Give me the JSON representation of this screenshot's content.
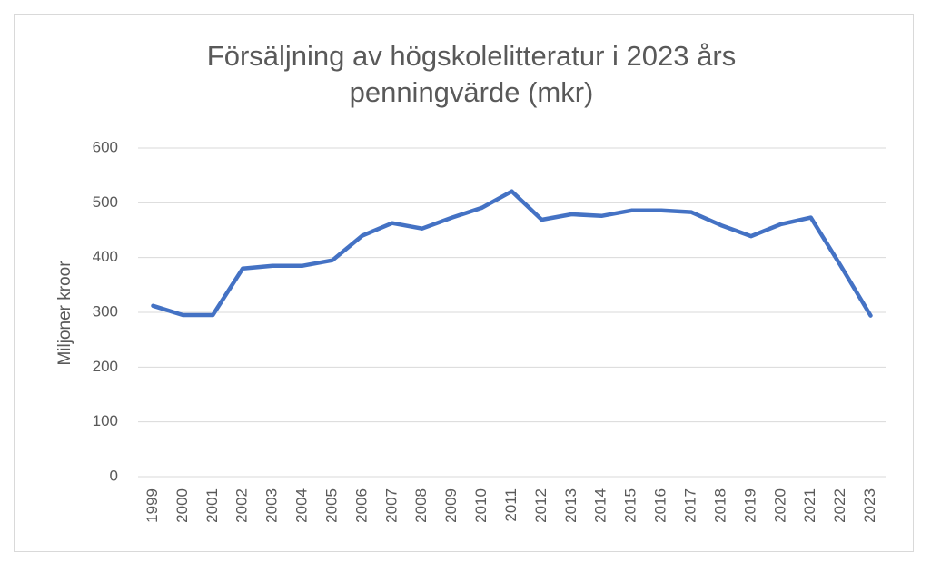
{
  "chart_data": {
    "type": "line",
    "title": "Försäljning av högskolelitteratur i 2023 års penningvärde (mkr)",
    "y_label": "Miljoner kroor",
    "categories": [
      "1999",
      "2000",
      "2001",
      "2002",
      "2003",
      "2004",
      "2005",
      "2006",
      "2007",
      "2008",
      "2009",
      "2010",
      "2011",
      "2012",
      "2013",
      "2014",
      "2015",
      "2016",
      "2017",
      "2018",
      "2019",
      "2020",
      "2021",
      "2022",
      "2023"
    ],
    "series": [
      {
        "color": "#4472c4",
        "values": [
          312,
          295,
          295,
          380,
          385,
          385,
          395,
          440,
          463,
          453,
          473,
          491,
          521,
          469,
          479,
          476,
          486,
          486,
          483,
          459,
          439,
          461,
          473,
          385,
          294
        ]
      }
    ],
    "ylim": [
      0,
      600
    ],
    "yticks": [
      0,
      100,
      200,
      300,
      400,
      500,
      600
    ],
    "grid": true
  }
}
